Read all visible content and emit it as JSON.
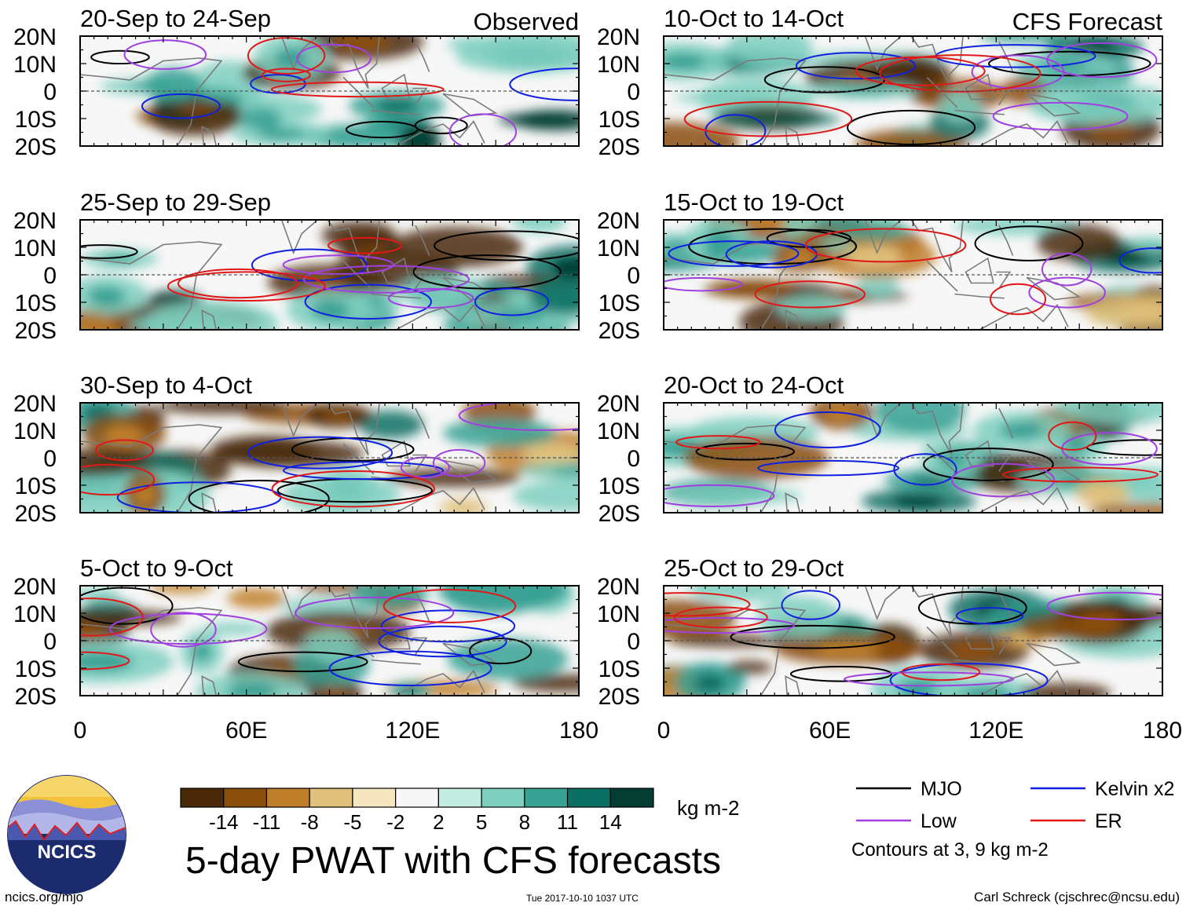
{
  "chart_data": {
    "type": "heatmap",
    "title": "5-day PWAT with CFS forecasts",
    "variable": "Precipitable water anomaly",
    "units": "kg m-2",
    "x_ticks": [
      "0",
      "60E",
      "120E",
      "180"
    ],
    "x_range": [
      0,
      180
    ],
    "y_ticks": [
      "20N",
      "10N",
      "0",
      "10S",
      "20S"
    ],
    "y_range": [
      -20,
      20
    ],
    "column_labels": {
      "observed": "Observed",
      "forecast": "CFS Forecast"
    },
    "panels": [
      {
        "period": "20-Sep to 24-Sep",
        "column": "observed",
        "row": 0
      },
      {
        "period": "25-Sep to 29-Sep",
        "column": "observed",
        "row": 1
      },
      {
        "period": "30-Sep to 4-Oct",
        "column": "observed",
        "row": 2
      },
      {
        "period": "5-Oct to 9-Oct",
        "column": "observed",
        "row": 3
      },
      {
        "period": "10-Oct to 14-Oct",
        "column": "forecast",
        "row": 0
      },
      {
        "period": "15-Oct to 19-Oct",
        "column": "forecast",
        "row": 1
      },
      {
        "period": "20-Oct to 24-Oct",
        "column": "forecast",
        "row": 2
      },
      {
        "period": "25-Oct to 29-Oct",
        "column": "forecast",
        "row": 3
      }
    ],
    "colorbar": {
      "labels": [
        "-14",
        "-11",
        "-8",
        "-5",
        "-2",
        "2",
        "5",
        "8",
        "11",
        "14"
      ],
      "colors": [
        "#4a2a08",
        "#8a4e0c",
        "#bf7f2a",
        "#e0c07a",
        "#f5e6c0",
        "#f7f7f7",
        "#c2ebe2",
        "#7ecfbf",
        "#37a194",
        "#0b7064",
        "#053d33"
      ],
      "units_label": "kg m-2"
    },
    "legend": [
      {
        "label": "MJO",
        "color": "#000000"
      },
      {
        "label": "Kelvin x2",
        "color": "#1020e0"
      },
      {
        "label": "Low",
        "color": "#a040e0"
      },
      {
        "label": "ER",
        "color": "#e01818"
      }
    ],
    "contour_note": "Contours at 3, 9 kg m-2"
  },
  "footer": {
    "logo_text": "NCICS",
    "url": "ncics.org/mjo",
    "timestamp": "Tue 2017-10-10 1037 UTC",
    "credit": "Carl Schreck (cjschrec@ncsu.edu)"
  }
}
